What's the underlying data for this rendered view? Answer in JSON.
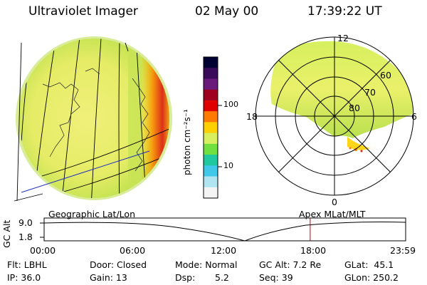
{
  "header": {
    "instrument": "Ultraviolet Imager",
    "date": "02 May 00",
    "time": "17:39:22 UT"
  },
  "colorbar": {
    "unit_label": "photon cm⁻²s⁻¹",
    "ticks": [
      "100",
      "10"
    ],
    "colors": [
      "#000033",
      "#3a0a5a",
      "#6a1a7a",
      "#a00020",
      "#e00000",
      "#ff7a00",
      "#ffd000",
      "#d8f060",
      "#70e040",
      "#20c8a0",
      "#40c8e8",
      "#b0e4f0",
      "#f4f4f4"
    ]
  },
  "polar": {
    "mlt_labels": {
      "top": "12",
      "left": "18",
      "right": "6",
      "bottom": "0"
    },
    "lat_labels": [
      "60",
      "70",
      "80"
    ]
  },
  "orbit": {
    "left_title": "Geographic Lat/Lon",
    "right_title": "Apex MLat/MLT",
    "ylabel": "GC Alt",
    "y_ticks": [
      "9.0",
      "1.8"
    ],
    "x_ticks": [
      "00:00",
      "06:00",
      "12:00",
      "18:00",
      "23:59"
    ],
    "marker_time_hours": 17.65,
    "marker_color": "#c00000"
  },
  "status": {
    "flt": "Flt: LBHL",
    "ip": "IP: 36.0",
    "door": "Door: Closed",
    "gain": "Gain: 13",
    "mode": "Mode: Normal",
    "dsp_label": "Dsp:",
    "dsp_value": "5.2",
    "gcalt": "GC Alt: 7.2 Re",
    "seq": "Seq: 39",
    "glat": "GLat:  45.1",
    "glon": "GLon: 250.2"
  }
}
